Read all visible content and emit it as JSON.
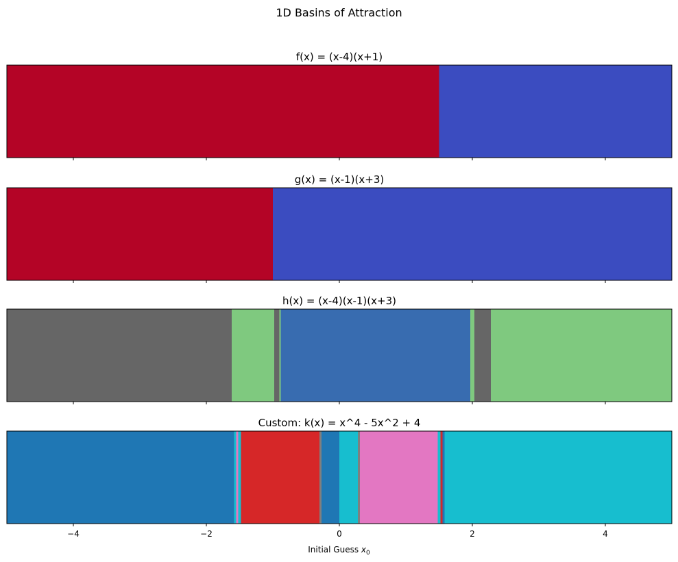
{
  "figure": {
    "suptitle": "1D Basins of Attraction",
    "xlabel_prefix": "Initial Guess ",
    "xlabel_var": "x",
    "xlabel_sub": "0"
  },
  "chart_data": [
    {
      "type": "heatmap",
      "title": "f(x) = (x-4)(x+1)",
      "xlim": [
        -5,
        5
      ],
      "show_tick_labels": false,
      "segments": [
        {
          "from": -5.0,
          "to": 1.5,
          "color": "#b40426"
        },
        {
          "from": 1.5,
          "to": 5.0,
          "color": "#3b4cc0"
        }
      ]
    },
    {
      "type": "heatmap",
      "title": "g(x) = (x-1)(x+3)",
      "xlim": [
        -5,
        5
      ],
      "show_tick_labels": false,
      "segments": [
        {
          "from": -5.0,
          "to": -1.0,
          "color": "#b40426"
        },
        {
          "from": -1.0,
          "to": 5.0,
          "color": "#3b4cc0"
        }
      ]
    },
    {
      "type": "heatmap",
      "title": "h(x) = (x-4)(x-1)(x+3)",
      "xlim": [
        -5,
        5
      ],
      "show_tick_labels": false,
      "segments": [
        {
          "from": -5.0,
          "to": -1.62,
          "color": "#666666"
        },
        {
          "from": -1.62,
          "to": -0.98,
          "color": "#7fc97f"
        },
        {
          "from": -0.98,
          "to": -0.9,
          "color": "#666666"
        },
        {
          "from": -0.9,
          "to": -0.88,
          "color": "#7fc97f"
        },
        {
          "from": -0.88,
          "to": 1.97,
          "color": "#386cb0"
        },
        {
          "from": 1.97,
          "to": 2.03,
          "color": "#7fc97f"
        },
        {
          "from": 2.03,
          "to": 2.28,
          "color": "#666666"
        },
        {
          "from": 2.28,
          "to": 5.0,
          "color": "#7fc97f"
        }
      ]
    },
    {
      "type": "heatmap",
      "title": "Custom: k(x) = x^4 - 5x^2 + 4",
      "xlim": [
        -5,
        5
      ],
      "show_tick_labels": true,
      "xticks": [
        -4,
        -2,
        0,
        2,
        4
      ],
      "xtick_labels": [
        "−4",
        "−2",
        "0",
        "2",
        "4"
      ],
      "segments": [
        {
          "from": -5.0,
          "to": -1.58,
          "color": "#1f77b4"
        },
        {
          "from": -1.58,
          "to": -1.55,
          "color": "#17becf"
        },
        {
          "from": -1.55,
          "to": -1.52,
          "color": "#e377c2"
        },
        {
          "from": -1.52,
          "to": -1.48,
          "color": "#17becf"
        },
        {
          "from": -1.48,
          "to": -0.3,
          "color": "#d62728"
        },
        {
          "from": -0.3,
          "to": -0.27,
          "color": "#7f7f7f"
        },
        {
          "from": -0.27,
          "to": 0.0,
          "color": "#1f77b4"
        },
        {
          "from": 0.0,
          "to": 0.28,
          "color": "#17becf"
        },
        {
          "from": 0.28,
          "to": 0.31,
          "color": "#7f7f7f"
        },
        {
          "from": 0.31,
          "to": 1.48,
          "color": "#e377c2"
        },
        {
          "from": 1.48,
          "to": 1.52,
          "color": "#17becf"
        },
        {
          "from": 1.52,
          "to": 1.55,
          "color": "#d62728"
        },
        {
          "from": 1.55,
          "to": 1.58,
          "color": "#1f77b4"
        },
        {
          "from": 1.58,
          "to": 5.0,
          "color": "#17becf"
        }
      ]
    }
  ]
}
